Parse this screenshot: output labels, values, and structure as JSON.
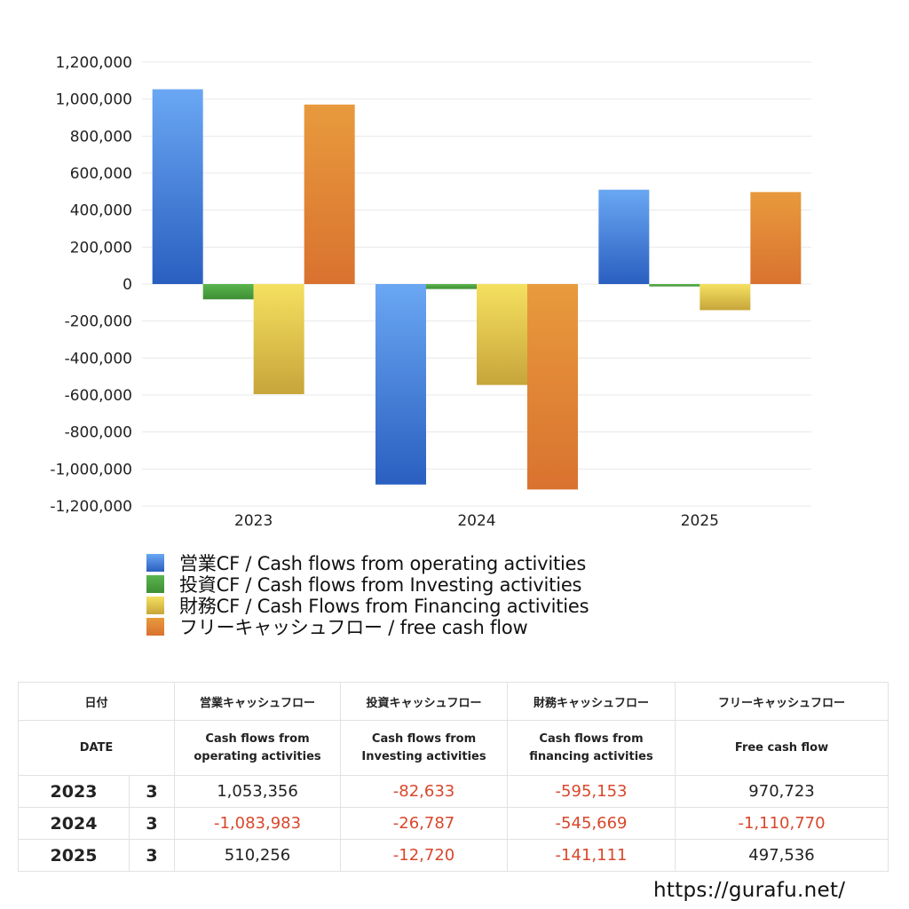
{
  "chart_data": {
    "type": "bar",
    "categories": [
      "2023",
      "2024",
      "2025"
    ],
    "ylim": [
      -1200000,
      1200000
    ],
    "yticks": [
      1200000,
      1000000,
      800000,
      600000,
      400000,
      200000,
      0,
      -200000,
      -400000,
      -600000,
      -800000,
      -1000000,
      -1200000
    ],
    "ytick_labels": [
      "1,200,000",
      "1,000,000",
      "800,000",
      "600,000",
      "400,000",
      "200,000",
      "0",
      "-200,000",
      "-400,000",
      "-600,000",
      "-800,000",
      "-1,000,000",
      "-1,200,000"
    ],
    "grid": true,
    "legend_position": "bottom-left",
    "series": [
      {
        "name": "営業CF / Cash flows from operating activities",
        "values": [
          1053356,
          -1083983,
          510256
        ],
        "color_top": "#6aa7f3",
        "color_bottom": "#2a5fc0"
      },
      {
        "name": "投資CF / Cash flows from Investing activities",
        "values": [
          -82633,
          -26787,
          -12720
        ],
        "color_top": "#5ab54d",
        "color_bottom": "#3f8e35"
      },
      {
        "name": "財務CF / Cash Flows from Financing activities",
        "values": [
          -595153,
          -545669,
          -141111
        ],
        "color_top": "#f5e060",
        "color_bottom": "#c7a53a"
      },
      {
        "name": "フリーキャッシュフロー / free cash flow",
        "values": [
          970723,
          -1110770,
          497536
        ],
        "color_top": "#e89a3d",
        "color_bottom": "#d9722f"
      }
    ]
  },
  "table": {
    "header_jp": [
      "日付",
      "営業キャッシュフロー",
      "投資キャッシュフロー",
      "財務キャッシュフロー",
      "フリーキャッシュフロー"
    ],
    "header_en": [
      "DATE",
      "Cash flows from",
      "operating activities",
      "Cash flows from",
      "Investing activities",
      "Cash flows from",
      "financing activities",
      "Free cash flow"
    ],
    "rows": [
      {
        "year": "2023",
        "month": "3",
        "op": "1,053,356",
        "inv": "-82,633",
        "fin": "-595,153",
        "fcf": "970,723"
      },
      {
        "year": "2024",
        "month": "3",
        "op": "-1,083,983",
        "inv": "-26,787",
        "fin": "-545,669",
        "fcf": "-1,110,770"
      },
      {
        "year": "2025",
        "month": "3",
        "op": "510,256",
        "inv": "-12,720",
        "fin": "-141,111",
        "fcf": "497,536"
      }
    ]
  },
  "watermark": "https://gurafu.net/",
  "colors": {
    "negative": "#d9472b",
    "grid": "#e8e8e8"
  }
}
